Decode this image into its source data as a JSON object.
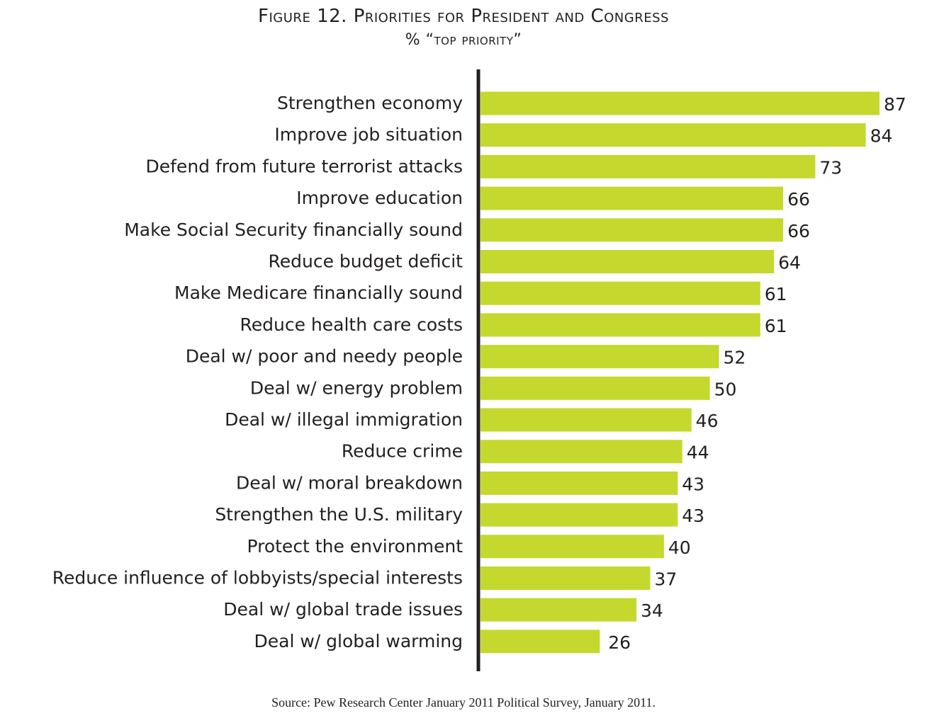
{
  "chart_data": {
    "type": "bar",
    "orientation": "horizontal",
    "title": "Figure 12. Priorities for President and Congress",
    "subtitle": "% “top priority”",
    "xlabel": "",
    "ylabel": "",
    "xlim": [
      0,
      100
    ],
    "grid": false,
    "bar_color": "#c4d82e",
    "categories": [
      "Strengthen economy",
      "Improve job situation",
      "Defend from future terrorist attacks",
      "Improve education",
      "Make Social Security financially sound",
      "Reduce budget deficit",
      "Make Medicare financially sound",
      "Reduce health care costs",
      "Deal w/ poor and needy people",
      "Deal w/ energy problem",
      "Deal w/ illegal immigration",
      "Reduce crime",
      "Deal w/ moral breakdown",
      "Strengthen the U.S. military",
      "Protect the environment",
      "Reduce influence of lobbyists/special interests",
      "Deal w/ global trade issues",
      "Deal w/ global warming"
    ],
    "values": [
      87,
      84,
      73,
      66,
      66,
      64,
      61,
      61,
      52,
      50,
      46,
      44,
      43,
      43,
      40,
      37,
      34,
      26
    ]
  },
  "source": "Source: Pew Research Center January 2011 Political Survey, January 2011."
}
